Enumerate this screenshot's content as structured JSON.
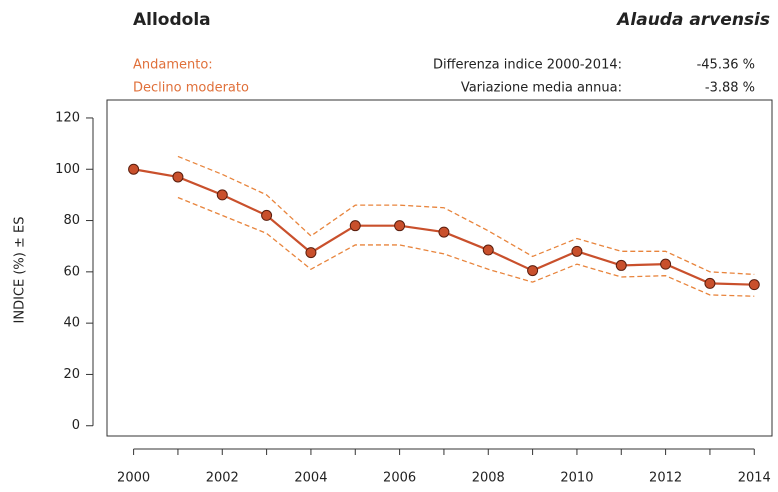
{
  "chart_data": {
    "type": "line",
    "title": "Allodola",
    "subtitle": "Alauda arvensis",
    "trend_label": "Andamento:",
    "trend_value": "Declino moderato",
    "stats": [
      {
        "label": "Differenza indice 2000-2014:",
        "value": "-45.36 %"
      },
      {
        "label": "Variazione media annua:",
        "value": "-3.88 %"
      }
    ],
    "y_label": "INDICE (%) ± ES",
    "x": [
      2000,
      2001,
      2002,
      2003,
      2004,
      2005,
      2006,
      2007,
      2008,
      2009,
      2010,
      2011,
      2012,
      2013,
      2014
    ],
    "series": [
      {
        "color": "#c9502c",
        "values": [
          100,
          97,
          90,
          82,
          67.5,
          78,
          78,
          75.5,
          68.5,
          60.5,
          68,
          62.5,
          63,
          55.5,
          55
        ]
      },
      {
        "color": "#e8843c",
        "dashed": true,
        "values": [
          null,
          105,
          98,
          90,
          74,
          86,
          86,
          85,
          76,
          66,
          73,
          68,
          68,
          60,
          59
        ]
      },
      {
        "color": "#e8843c",
        "dashed": true,
        "values": [
          null,
          89,
          82,
          75,
          61,
          70.5,
          70.5,
          67,
          61,
          56,
          63,
          58,
          58.5,
          51,
          50.5
        ]
      }
    ],
    "xlim": [
      1999.4,
      2014.4
    ],
    "ylim": [
      -4,
      127
    ],
    "xticks": [
      2000,
      2002,
      2004,
      2006,
      2008,
      2010,
      2012,
      2014
    ],
    "yticks": [
      0,
      20,
      40,
      60,
      80,
      100,
      120
    ]
  }
}
